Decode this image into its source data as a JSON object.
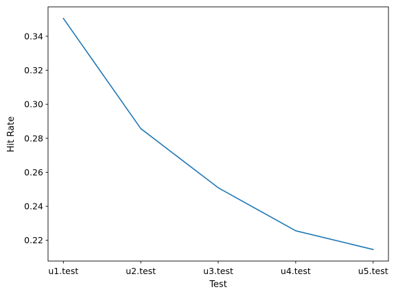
{
  "chart_data": {
    "type": "line",
    "title": "",
    "xlabel": "Test",
    "ylabel": "Hit Rate",
    "categories": [
      "u1.test",
      "u2.test",
      "u3.test",
      "u4.test",
      "u5.test"
    ],
    "series": [
      {
        "values": [
          0.3505,
          0.2857,
          0.2509,
          0.2256,
          0.2146
        ]
      }
    ],
    "ylim": [
      0.2078,
      0.3573
    ],
    "yticks": [
      "0.22",
      "0.24",
      "0.26",
      "0.28",
      "0.30",
      "0.32",
      "0.34"
    ],
    "ytick_values": [
      0.22,
      0.24,
      0.26,
      0.28,
      0.3,
      0.32,
      0.34
    ],
    "grid": false,
    "line_color": "#1f77b4"
  }
}
